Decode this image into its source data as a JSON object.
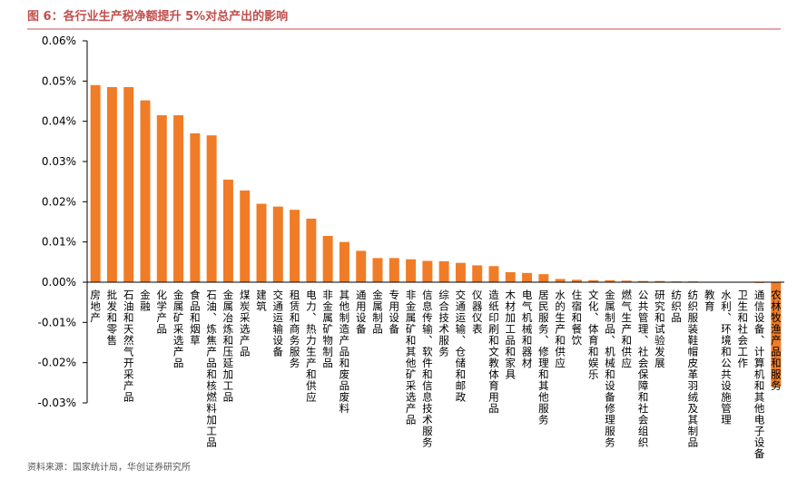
{
  "chart_data": {
    "type": "bar",
    "title": "图 6：各行业生产税净额提升 5%对总产出的影响",
    "source": "资料来源：国家统计局，华创证券研究所",
    "categories": [
      "房地产",
      "批发和零售",
      "石油和天然气开采产品",
      "金融",
      "化学产品",
      "金属矿采选产品",
      "食品和烟草",
      "石油、炼焦产品和核燃料加工品",
      "金属冶炼和压延加工品",
      "煤炭采选产品",
      "建筑",
      "交通运输设备",
      "租赁和商务服务",
      "电力、热力生产和供应",
      "非金属矿物制品",
      "其他制造产品和废品废料",
      "通用设备",
      "金属制品",
      "专用设备",
      "非金属矿和其他矿采选产品",
      "信息传输、软件和信息技术服务",
      "综合技术服务",
      "交通运输、仓储和邮政",
      "仪器仪表",
      "造纸印刷和文教体育用品",
      "木材加工品和家具",
      "电气机械和器材",
      "居民服务、修理和其他服务",
      "水的生产和供应",
      "住宿和餐饮",
      "文化、体育和娱乐",
      "金属制品、机械和设备修理服务",
      "燃气生产和供应",
      "公共管理、社会保障和社会组织",
      "研究和试验发展",
      "纺织品",
      "纺织服装鞋帽皮革羽绒及其制品",
      "教育",
      "水利、环境和公共设施管理",
      "卫生和社会工作",
      "通信设备、计算机和其他电子设备",
      "农林牧渔产品和服务"
    ],
    "values": [
      0.049,
      0.0485,
      0.0485,
      0.0452,
      0.0415,
      0.0415,
      0.037,
      0.0365,
      0.0255,
      0.0228,
      0.0195,
      0.0188,
      0.018,
      0.0158,
      0.0115,
      0.01,
      0.0078,
      0.006,
      0.006,
      0.0057,
      0.0053,
      0.0052,
      0.0048,
      0.0042,
      0.004,
      0.0025,
      0.0023,
      0.002,
      0.0008,
      0.0006,
      0.0005,
      0.0005,
      0.0004,
      0.0003,
      0.0003,
      0.0002,
      0.0002,
      0.0001,
      0.0001,
      5e-05,
      -0.0002,
      -0.026
    ],
    "color": "#f07c28",
    "ylim": [
      -0.03,
      0.06
    ],
    "yticks": [
      {
        "value": -0.03,
        "label": "-0.03%"
      },
      {
        "value": -0.02,
        "label": "-0.02%"
      },
      {
        "value": -0.01,
        "label": "-0.01%"
      },
      {
        "value": 0,
        "label": "0.00%"
      },
      {
        "value": 0.01,
        "label": "0.01%"
      },
      {
        "value": 0.02,
        "label": "0.02%"
      },
      {
        "value": 0.03,
        "label": "0.03%"
      },
      {
        "value": 0.04,
        "label": "0.04%"
      },
      {
        "value": 0.05,
        "label": "0.05%"
      },
      {
        "value": 0.06,
        "label": "0.06%"
      }
    ],
    "grid": false
  }
}
